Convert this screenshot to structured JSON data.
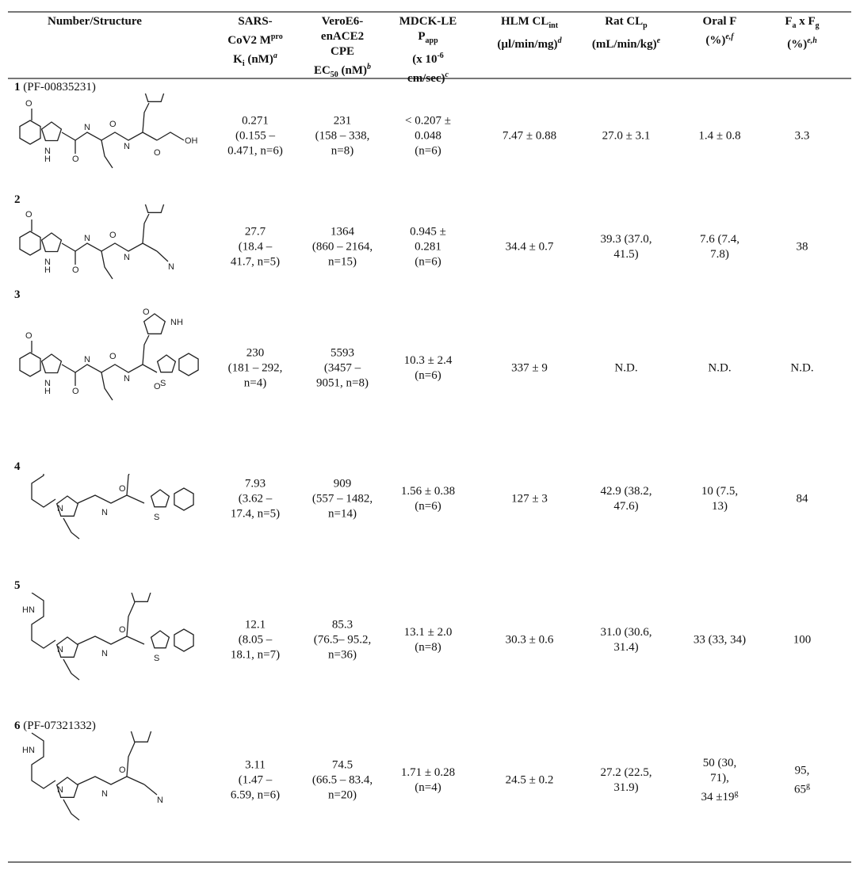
{
  "headers": [
    {
      "key": "structure",
      "lines": [
        "Number/Structure"
      ]
    },
    {
      "key": "ki",
      "lines": [
        "SARS-",
        "CoV2 M<sup>pro</sup>",
        "K<sub>i</sub> (nM)<sup><i>a</i></sup>"
      ]
    },
    {
      "key": "ec50",
      "lines": [
        "VeroE6-",
        "enACE2",
        "CPE",
        "EC<sub>50</sub> (nM)<sup><i>b</i></sup>"
      ]
    },
    {
      "key": "papp",
      "lines": [
        "MDCK-LE",
        "P<sub>app</sub>",
        "(x 10<sup>-6</sup>",
        "cm/sec)<sup><i>c</i></sup>"
      ]
    },
    {
      "key": "hlm",
      "lines": [
        "HLM CL<sub>int</sub>",
        "(µl/min/mg)<sup><i>d</i></sup>"
      ]
    },
    {
      "key": "rat",
      "lines": [
        "Rat CL<sub>p</sub>",
        "(mL/min/kg)<sup><i>e</i></sup>"
      ]
    },
    {
      "key": "oralf",
      "lines": [
        "Oral F",
        "(%)<sup><i>e,f</i></sup>"
      ]
    },
    {
      "key": "fafg",
      "lines": [
        "F<sub>a</sub> x F<sub>g</sub>",
        "(%)<sup><i>e,h</i></sup>"
      ]
    }
  ],
  "rows": [
    {
      "number": "1",
      "name": "(PF-00835231)",
      "ki": [
        "0.271",
        "(0.155 –",
        "0.471, n=6)"
      ],
      "ec50": [
        "231",
        "(158 – 338,",
        "n=8)"
      ],
      "papp": [
        "< 0.207 ±",
        "0.048",
        "(n=6)"
      ],
      "hlm": [
        "7.47 ± 0.88"
      ],
      "rat": [
        "27.0 ± 3.1"
      ],
      "oralf": [
        "1.4 ± 0.8"
      ],
      "fafg": [
        "3.3"
      ]
    },
    {
      "number": "2",
      "name": "",
      "ki": [
        "27.7",
        "(18.4 –",
        "41.7, n=5)"
      ],
      "ec50": [
        "1364",
        "(860 – 2164,",
        "n=15)"
      ],
      "papp": [
        "0.945 ±",
        "0.281",
        "(n=6)"
      ],
      "hlm": [
        "34.4 ± 0.7"
      ],
      "rat": [
        "39.3 (37.0,",
        "41.5)"
      ],
      "oralf": [
        "7.6 (7.4,",
        "7.8)"
      ],
      "fafg": [
        "38"
      ]
    },
    {
      "number": "3",
      "name": "",
      "ki": [
        "230",
        "(181 – 292,",
        "n=4)"
      ],
      "ec50": [
        "5593",
        "(3457 –",
        "9051, n=8)"
      ],
      "papp": [
        "10.3 ± 2.4",
        "(n=6)"
      ],
      "hlm": [
        "337 ± 9"
      ],
      "rat": [
        "N.D."
      ],
      "oralf": [
        "N.D."
      ],
      "fafg": [
        "N.D."
      ]
    },
    {
      "number": "4",
      "name": "",
      "ki": [
        "7.93",
        "(3.62 –",
        "17.4, n=5)"
      ],
      "ec50": [
        "909",
        "(557 – 1482,",
        "n=14)"
      ],
      "papp": [
        "1.56 ± 0.38",
        "(n=6)"
      ],
      "hlm": [
        "127 ± 3"
      ],
      "rat": [
        "42.9 (38.2,",
        "47.6)"
      ],
      "oralf": [
        "10 (7.5,",
        "13)"
      ],
      "fafg": [
        "84"
      ]
    },
    {
      "number": "5",
      "name": "",
      "ki": [
        "12.1",
        "(8.05 –",
        "18.1, n=7)"
      ],
      "ec50": [
        "85.3",
        "(76.5– 95.2,",
        "n=36)"
      ],
      "papp": [
        "13.1 ± 2.0",
        "(n=8)"
      ],
      "hlm": [
        "30.3 ± 0.6"
      ],
      "rat": [
        "31.0 (30.6,",
        "31.4)"
      ],
      "oralf": [
        "33 (33, 34)"
      ],
      "fafg": [
        "100"
      ]
    },
    {
      "number": "6",
      "name": "(PF-07321332)",
      "ki": [
        "3.11",
        "(1.47 –",
        "6.59, n=6)"
      ],
      "ec50": [
        "74.5",
        "(66.5 – 83.4,",
        "n=20)"
      ],
      "papp": [
        "1.71 ± 0.28",
        "(n=4)"
      ],
      "hlm": [
        "24.5 ± 0.2"
      ],
      "rat": [
        "27.2 (22.5,",
        "31.9)"
      ],
      "oralf": [
        "50 (30,",
        "71),",
        "34 ±19<sup>g</sup>"
      ],
      "fafg": [
        "95,",
        "65<sup>g</sup>"
      ]
    }
  ]
}
